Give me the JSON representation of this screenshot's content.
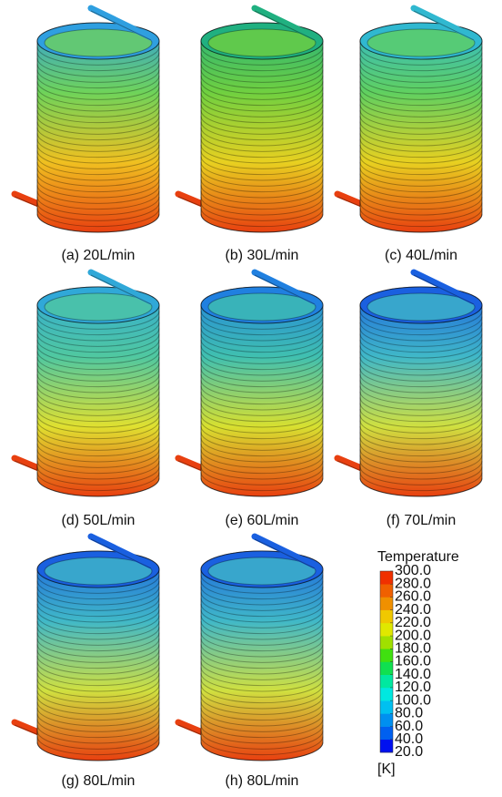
{
  "panels": [
    {
      "caption": "(a) 20L/min",
      "colors": [
        "#2f9fe0",
        "#6fd35a",
        "#f0c020",
        "#e84010"
      ]
    },
    {
      "caption": "(b) 30L/min",
      "colors": [
        "#20b080",
        "#70d040",
        "#e8d020",
        "#e84010"
      ]
    },
    {
      "caption": "(c) 40L/min",
      "colors": [
        "#30b8d0",
        "#60d060",
        "#e8d020",
        "#e84010"
      ]
    },
    {
      "caption": "(d) 50L/min",
      "colors": [
        "#30a8d8",
        "#50c8a0",
        "#e0e030",
        "#e84010"
      ]
    },
    {
      "caption": "(e) 60L/min",
      "colors": [
        "#2080e0",
        "#40c0b0",
        "#d8e030",
        "#e84010"
      ]
    },
    {
      "caption": "(f) 70L/min",
      "colors": [
        "#1a60e0",
        "#40b8c8",
        "#d0e040",
        "#e84010"
      ]
    },
    {
      "caption": "(g) 80L/min",
      "colors": [
        "#1a60e0",
        "#40b8c8",
        "#d0e040",
        "#e84010"
      ]
    },
    {
      "caption": "(h) 80L/min",
      "colors": [
        "#1a60e0",
        "#40b8c8",
        "#d0e040",
        "#e84010"
      ]
    }
  ],
  "colorbar": {
    "title": "Temperature",
    "unit": "[K]",
    "ticks": [
      {
        "value": 300,
        "label": "300.0"
      },
      {
        "value": 280,
        "label": "280.0"
      },
      {
        "value": 260,
        "label": "260.0"
      },
      {
        "value": 240,
        "label": "240.0"
      },
      {
        "value": 220,
        "label": "220.0"
      },
      {
        "value": 200,
        "label": "200.0"
      },
      {
        "value": 180,
        "label": "180.0"
      },
      {
        "value": 160,
        "label": "160.0"
      },
      {
        "value": 140,
        "label": "140.0"
      },
      {
        "value": 120,
        "label": "120.0"
      },
      {
        "value": 100,
        "label": "100.0"
      },
      {
        "value": 80,
        "label": "80.0"
      },
      {
        "value": 60,
        "label": "60.0"
      },
      {
        "value": 40,
        "label": "40.0"
      },
      {
        "value": 20,
        "label": "20.0"
      }
    ],
    "colors": [
      "#0010f0",
      "#0060f0",
      "#0090f0",
      "#00c0f0",
      "#00e8e0",
      "#00e8a0",
      "#10e050",
      "#40e010",
      "#a0e000",
      "#e0e800",
      "#f0c800",
      "#f09000",
      "#f06000",
      "#f03000"
    ]
  }
}
